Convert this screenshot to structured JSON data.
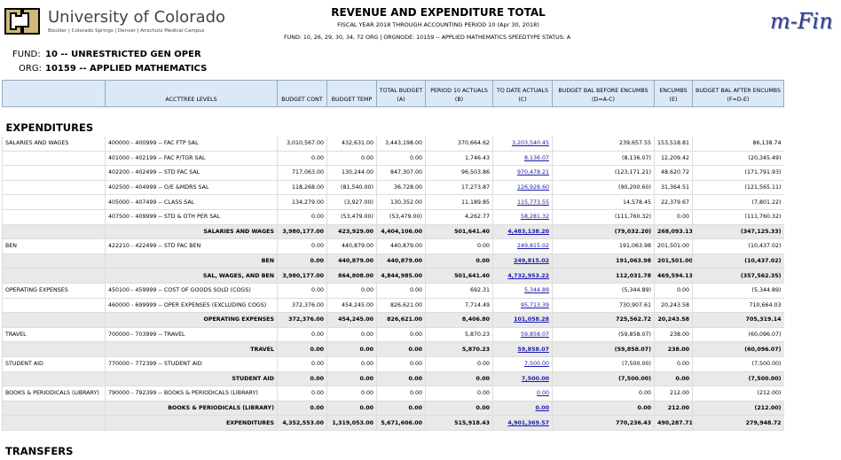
{
  "header": {
    "university": "University of Colorado",
    "campuses": "Boulder | Colorado Springs | Denver | Anschutz Medical Campus",
    "title": "REVENUE AND EXPENDITURE TOTAL",
    "period": "FISCAL YEAR 2018 THROUGH ACCOUNTING PERIOD 10 (Apr 30, 2018)",
    "filters": "FUND: 10, 26, 29, 30, 34, 72   ORG | ORGNODE: 10159 -- APPLIED MATHEMATICS   SPEEDTYPE STATUS: A",
    "brand": "m-Fin"
  },
  "fund": {
    "fund_label": "FUND:",
    "fund_value": "10 -- UNRESTRICTED GEN OPER",
    "org_label": "ORG:",
    "org_value": "10159 -- APPLIED MATHEMATICS"
  },
  "table": {
    "columns": [
      [
        "ACCTTREE LEVELS"
      ],
      [
        "BUDGET CONT"
      ],
      [
        "BUDGET TEMP"
      ],
      [
        "TOTAL BUDGET",
        "(A)"
      ],
      [
        "PERIOD  10 ACTUALS",
        "(B)"
      ],
      [
        "TO DATE ACTUALS",
        "(C)"
      ],
      [
        "BUDGET BAL BEFORE ENCUMBS",
        "(D=A-C)"
      ],
      [
        "ENCUMBS",
        "(E)"
      ],
      [
        "BUDGET BAL AFTER ENCUMBS",
        "(F=D-E)"
      ]
    ],
    "section": "EXPENDITURES",
    "rows": [
      {
        "group": "SALARIES AND WAGES",
        "account": "400000 - 400999 -- FAC FTP SAL",
        "cells": [
          "3,010,567.00",
          "432,631.00",
          "3,443,198.00",
          "370,664.62",
          "3,203,540.45",
          "239,657.55",
          "153,518.81",
          "86,138.74"
        ]
      },
      {
        "account": "401000 - 402199 -- FAC P/TGR SAL",
        "cells": [
          "0.00",
          "0.00",
          "0.00",
          "1,746.43",
          "8,136.07",
          "(8,136.07)",
          "12,209.42",
          "(20,345.49)"
        ]
      },
      {
        "account": "402200 - 402499 -- STD FAC SAL",
        "cells": [
          "717,063.00",
          "130,244.00",
          "847,307.00",
          "96,503.86",
          "970,478.21",
          "(123,171.21)",
          "48,620.72",
          "(171,791.93)"
        ]
      },
      {
        "account": "402500 - 404999 -- O/E &MDRS SAL",
        "cells": [
          "118,268.00",
          "(81,540.00)",
          "36,728.00",
          "17,273.87",
          "126,928.60",
          "(90,200.60)",
          "31,364.51",
          "(121,565.11)"
        ]
      },
      {
        "account": "405000 - 407499 -- CLASS SAL",
        "cells": [
          "134,279.00",
          "(3,927.00)",
          "130,352.00",
          "11,189.85",
          "115,773.55",
          "14,578.45",
          "22,379.67",
          "(7,801.22)"
        ]
      },
      {
        "account": "407500 - 409999 -- STD & OTH PER SAL",
        "cells": [
          "0.00",
          "(53,479.00)",
          "(53,479.00)",
          "4,262.77",
          "58,281.32",
          "(111,760.32)",
          "0.00",
          "(111,760.32)"
        ]
      },
      {
        "total": "SALARIES AND WAGES",
        "cells": [
          "3,980,177.00",
          "423,929.00",
          "4,404,106.00",
          "501,641.40",
          "4,483,138.20",
          "(79,032.20)",
          "268,093.13",
          "(347,125.33)"
        ]
      },
      {
        "group": "BEN",
        "account": "422210 - 422499 -- STD FAC BEN",
        "cells": [
          "0.00",
          "440,879.00",
          "440,879.00",
          "0.00",
          "249,815.02",
          "191,063.98",
          "201,501.00",
          "(10,437.02)"
        ]
      },
      {
        "total": "BEN",
        "cells": [
          "0.00",
          "440,879.00",
          "440,879.00",
          "0.00",
          "249,815.02",
          "191,063.98",
          "201,501.00",
          "(10,437.02)"
        ]
      },
      {
        "total": "SAL, WAGES, AND BEN",
        "cells": [
          "3,980,177.00",
          "864,808.00",
          "4,844,985.00",
          "501,641.40",
          "4,732,953.22",
          "112,031.78",
          "469,594.13",
          "(357,562.35)"
        ]
      },
      {
        "group": "OPERATING EXPENSES",
        "account": "450100 - 459999 -- COST OF GOODS SOLD (COGS)",
        "cells": [
          "0.00",
          "0.00",
          "0.00",
          "692.31",
          "5,344.89",
          "(5,344.89)",
          "0.00",
          "(5,344.89)"
        ]
      },
      {
        "account": "460000 - 699999 -- OPER EXPENSES (EXCLUDING COGS)",
        "cells": [
          "372,376.00",
          "454,245.00",
          "826,621.00",
          "7,714.49",
          "95,713.39",
          "730,907.61",
          "20,243.58",
          "710,664.03"
        ]
      },
      {
        "total": "OPERATING EXPENSES",
        "cells": [
          "372,376.00",
          "454,245.00",
          "826,621.00",
          "8,406.80",
          "101,058.28",
          "725,562.72",
          "20,243.58",
          "705,319.14"
        ]
      },
      {
        "group": "TRAVEL",
        "account": "700000 - 703999 -- TRAVEL",
        "cells": [
          "0.00",
          "0.00",
          "0.00",
          "5,870.23",
          "59,858.07",
          "(59,858.07)",
          "238.00",
          "(60,096.07)"
        ]
      },
      {
        "total": "TRAVEL",
        "cells": [
          "0.00",
          "0.00",
          "0.00",
          "5,870.23",
          "59,858.07",
          "(59,858.07)",
          "238.00",
          "(60,096.07)"
        ]
      },
      {
        "group": "STUDENT AID",
        "account": "770000 - 772399 -- STUDENT AID",
        "cells": [
          "0.00",
          "0.00",
          "0.00",
          "0.00",
          "7,500.00",
          "(7,500.00)",
          "0.00",
          "(7,500.00)"
        ]
      },
      {
        "total": "STUDENT AID",
        "cells": [
          "0.00",
          "0.00",
          "0.00",
          "0.00",
          "7,500.00",
          "(7,500.00)",
          "0.00",
          "(7,500.00)"
        ]
      },
      {
        "group": "BOOKS & PERIODICALS (LIBRARY)",
        "account": "790000 - 792399 -- BOOKS & PERIODICALS (LIBRARY)",
        "cells": [
          "0.00",
          "0.00",
          "0.00",
          "0.00",
          "0.00",
          "0.00",
          "212.00",
          "(212.00)"
        ]
      },
      {
        "total": "BOOKS & PERIODICALS (LIBRARY)",
        "cells": [
          "0.00",
          "0.00",
          "0.00",
          "0.00",
          "0.00",
          "0.00",
          "212.00",
          "(212.00)"
        ]
      },
      {
        "total": "EXPENDITURES",
        "cells": [
          "4,352,553.00",
          "1,319,053.00",
          "5,671,606.00",
          "515,918.43",
          "4,901,369.57",
          "770,236.43",
          "490,287.71",
          "279,948.72"
        ]
      }
    ],
    "next_section": "TRANSFERS"
  }
}
